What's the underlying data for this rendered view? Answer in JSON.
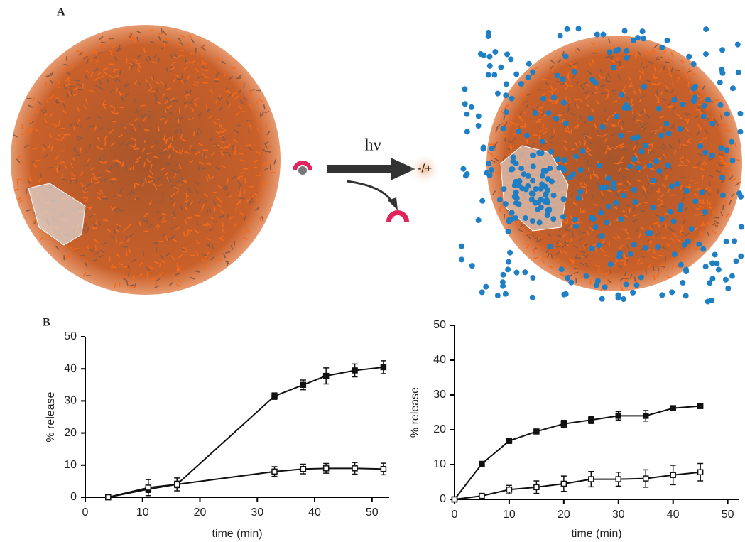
{
  "panel_labels": {
    "a": "A",
    "b": "B"
  },
  "scheme": {
    "light": "hν",
    "charge": "-/+"
  },
  "chart_data": [
    {
      "type": "line",
      "xlabel": "time (min)",
      "ylabel": "% release",
      "x": [
        4,
        11,
        16,
        33,
        38,
        42,
        47,
        52
      ],
      "series": [
        {
          "color": "#111111",
          "marker": "filled-square",
          "values": [
            0,
            2.5,
            4,
            31.5,
            35,
            37.8,
            39.5,
            40.5
          ],
          "errors": [
            0,
            1,
            1,
            1,
            1.5,
            2.5,
            2,
            2
          ]
        },
        {
          "color": "#111111",
          "marker": "open-square",
          "values": [
            0,
            3,
            4,
            8,
            8.8,
            9,
            9,
            8.8
          ],
          "errors": [
            0,
            2.5,
            2,
            1.5,
            1.5,
            1.5,
            1.8,
            1.8
          ]
        }
      ],
      "xlim": [
        0,
        53
      ],
      "ylim": [
        0,
        50
      ],
      "xticks": [
        0,
        10,
        20,
        30,
        40,
        50
      ],
      "yticks": [
        0,
        10,
        20,
        30,
        40,
        50
      ],
      "grid": false
    },
    {
      "type": "line",
      "xlabel": "time (min)",
      "ylabel": "% release",
      "x": [
        0,
        5,
        10,
        15,
        20,
        25,
        30,
        35,
        40,
        45
      ],
      "series": [
        {
          "color": "#111111",
          "marker": "filled-square",
          "values": [
            0,
            10.2,
            16.8,
            19.5,
            21.7,
            22.8,
            24,
            24,
            26.2,
            26.8
          ],
          "errors": [
            0,
            0.5,
            0.5,
            0.5,
            1,
            1,
            1.2,
            1.5,
            0.5,
            0.5
          ]
        },
        {
          "color": "#111111",
          "marker": "open-square",
          "values": [
            0,
            1,
            2.8,
            3.5,
            4.5,
            5.8,
            5.8,
            6,
            7,
            7.8
          ],
          "errors": [
            0,
            0.5,
            1.2,
            1.8,
            2.2,
            2.2,
            2,
            2.5,
            2.8,
            2.5
          ]
        }
      ],
      "xlim": [
        0,
        52
      ],
      "ylim": [
        0,
        50
      ],
      "xticks": [
        0,
        10,
        20,
        30,
        40,
        50
      ],
      "yticks": [
        0,
        10,
        20,
        30,
        40,
        50
      ],
      "grid": false
    }
  ]
}
